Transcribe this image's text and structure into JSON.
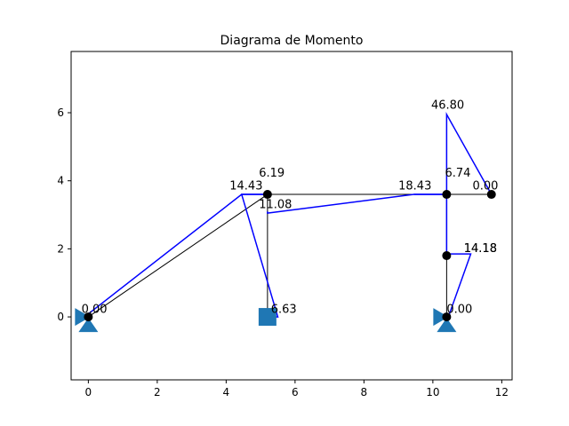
{
  "chart_data": {
    "type": "line",
    "title": "Diagrama de Momento",
    "xlabel": "",
    "ylabel": "",
    "xlim": [
      -0.5,
      12.3
    ],
    "ylim": [
      -1.85,
      7.8
    ],
    "x_ticks": [
      0,
      2,
      4,
      6,
      8,
      10,
      12
    ],
    "y_ticks": [
      0,
      2,
      4,
      6
    ],
    "x_tick_labels": [
      "0",
      "2",
      "4",
      "6",
      "8",
      "10",
      "12"
    ],
    "y_tick_labels": [
      "0",
      "2",
      "4",
      "6"
    ],
    "grid": false,
    "colors": {
      "structure": "#000000",
      "moment": "#0000ff",
      "support": "#1f77b4",
      "node": "#000000"
    },
    "nodes": [
      {
        "x": 0.0,
        "y": 0.0
      },
      {
        "x": 5.2,
        "y": 3.6
      },
      {
        "x": 10.4,
        "y": 3.6
      },
      {
        "x": 11.7,
        "y": 3.6
      },
      {
        "x": 10.4,
        "y": 1.8
      },
      {
        "x": 10.4,
        "y": 0.0
      }
    ],
    "members": [
      [
        [
          0.0,
          0.0
        ],
        [
          5.2,
          3.6
        ]
      ],
      [
        [
          5.2,
          3.6
        ],
        [
          5.2,
          0.0
        ]
      ],
      [
        [
          5.2,
          3.6
        ],
        [
          11.7,
          3.6
        ]
      ],
      [
        [
          10.4,
          3.6
        ],
        [
          10.4,
          0.0
        ]
      ]
    ],
    "moment_diagram": [
      [
        [
          0.0,
          0.0
        ],
        [
          -0.05,
          0.05
        ],
        [
          4.45,
          3.6
        ],
        [
          5.2,
          3.6
        ]
      ],
      [
        [
          5.2,
          3.6
        ],
        [
          4.45,
          3.6
        ],
        [
          5.5,
          0.0
        ],
        [
          5.2,
          0.0
        ]
      ],
      [
        [
          5.2,
          3.1
        ],
        [
          5.2,
          3.05
        ],
        [
          9.45,
          3.6
        ],
        [
          10.4,
          3.6
        ]
      ],
      [
        [
          10.4,
          3.6
        ],
        [
          9.45,
          3.6
        ],
        [
          10.4,
          3.6
        ],
        [
          10.4,
          5.95
        ],
        [
          11.7,
          3.6
        ]
      ],
      [
        [
          10.4,
          3.6
        ],
        [
          10.4,
          1.85
        ],
        [
          11.1,
          1.85
        ],
        [
          10.45,
          0.0
        ],
        [
          10.4,
          0.0
        ]
      ]
    ],
    "supports": [
      {
        "type": "pinned",
        "x": 0.0,
        "y": 0.0
      },
      {
        "type": "fixed",
        "x": 5.2,
        "y": 0.0
      },
      {
        "type": "pinned",
        "x": 10.4,
        "y": 0.0
      }
    ],
    "annotations": [
      {
        "text": "0.00",
        "x": -0.2,
        "y": 0.12
      },
      {
        "text": "14.43",
        "x": 4.1,
        "y": 3.75
      },
      {
        "text": "6.19",
        "x": 4.95,
        "y": 4.12
      },
      {
        "text": "11.08",
        "x": 4.95,
        "y": 3.2
      },
      {
        "text": "6.63",
        "x": 5.3,
        "y": 0.12
      },
      {
        "text": "18.43",
        "x": 9.0,
        "y": 3.75
      },
      {
        "text": "6.74",
        "x": 10.35,
        "y": 4.12
      },
      {
        "text": "0.00",
        "x": 11.15,
        "y": 3.75
      },
      {
        "text": "46.80",
        "x": 9.95,
        "y": 6.12
      },
      {
        "text": "14.18",
        "x": 10.9,
        "y": 1.9
      },
      {
        "text": "14.18",
        "x": 10.9,
        "y": 1.9
      },
      {
        "text": "0.00",
        "x": 10.4,
        "y": 0.12
      }
    ]
  }
}
